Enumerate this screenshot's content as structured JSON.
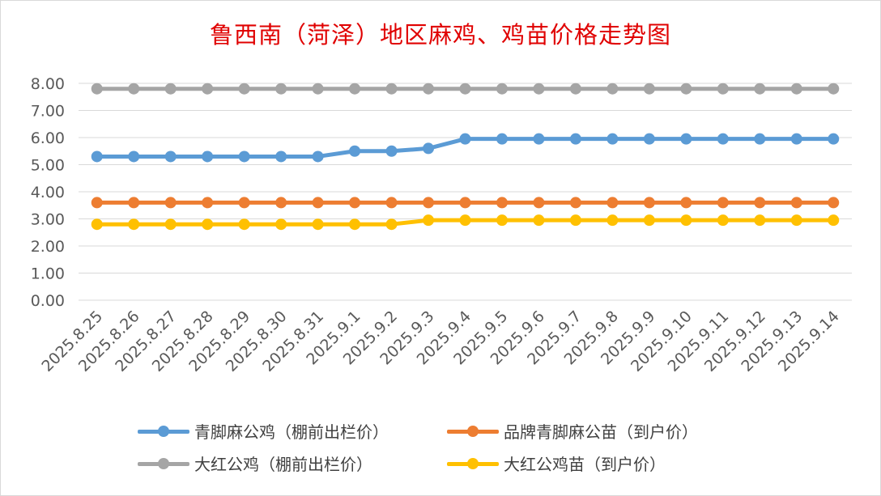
{
  "chart_data": {
    "type": "line",
    "title": "鲁西南（菏泽）地区麻鸡、鸡苗价格走势图",
    "xlabel": "",
    "ylabel": "",
    "ylim": [
      0,
      8
    ],
    "y_ticks": [
      "0.00",
      "1.00",
      "2.00",
      "3.00",
      "4.00",
      "5.00",
      "6.00",
      "7.00",
      "8.00"
    ],
    "grid": "horizontal",
    "legend_position": "bottom",
    "categories": [
      "2025.8.25",
      "2025.8.26",
      "2025.8.27",
      "2025.8.28",
      "2025.8.29",
      "2025.8.30",
      "2025.8.31",
      "2025.9.1",
      "2025.9.2",
      "2025.9.3",
      "2025.9.4",
      "2025.9.5",
      "2025.9.6",
      "2025.9.7",
      "2025.9.8",
      "2025.9.9",
      "2025.9.10",
      "2025.9.11",
      "2025.9.12",
      "2025.9.13",
      "2025.9.14"
    ],
    "series": [
      {
        "name": "青脚麻公鸡（棚前出栏价）",
        "color": "#5b9bd5",
        "values": [
          5.3,
          5.3,
          5.3,
          5.3,
          5.3,
          5.3,
          5.3,
          5.5,
          5.5,
          5.6,
          5.95,
          5.95,
          5.95,
          5.95,
          5.95,
          5.95,
          5.95,
          5.95,
          5.95,
          5.95,
          5.95
        ]
      },
      {
        "name": "品牌青脚麻公苗（到户价）",
        "color": "#ed7d31",
        "values": [
          3.6,
          3.6,
          3.6,
          3.6,
          3.6,
          3.6,
          3.6,
          3.6,
          3.6,
          3.6,
          3.6,
          3.6,
          3.6,
          3.6,
          3.6,
          3.6,
          3.6,
          3.6,
          3.6,
          3.6,
          3.6
        ]
      },
      {
        "name": "大红公鸡（棚前出栏价）",
        "color": "#a5a5a5",
        "values": [
          7.8,
          7.8,
          7.8,
          7.8,
          7.8,
          7.8,
          7.8,
          7.8,
          7.8,
          7.8,
          7.8,
          7.8,
          7.8,
          7.8,
          7.8,
          7.8,
          7.8,
          7.8,
          7.8,
          7.8,
          7.8
        ]
      },
      {
        "name": "大红公鸡苗（到户价）",
        "color": "#ffc000",
        "values": [
          2.8,
          2.8,
          2.8,
          2.8,
          2.8,
          2.8,
          2.8,
          2.8,
          2.8,
          2.95,
          2.95,
          2.95,
          2.95,
          2.95,
          2.95,
          2.95,
          2.95,
          2.95,
          2.95,
          2.95,
          2.95
        ]
      }
    ]
  }
}
